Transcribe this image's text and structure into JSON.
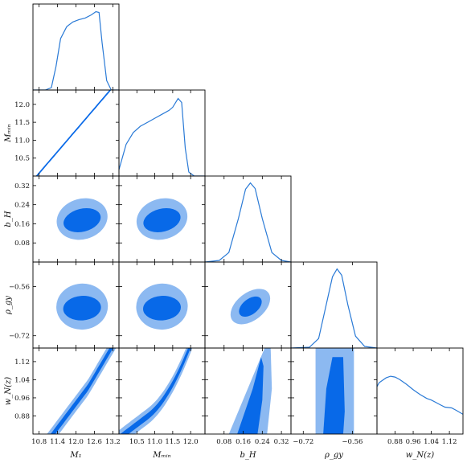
{
  "chart_data": {
    "type": "corner",
    "title": "",
    "parameters": [
      {
        "key": "M1",
        "label": "M₁",
        "range": [
          10.6,
          13.4
        ],
        "ticks": [
          10.8,
          11.4,
          12.0,
          12.6,
          13.2
        ],
        "tick_labels": [
          "10.8",
          "11.4",
          "12.0",
          "12.6",
          "13.2"
        ]
      },
      {
        "key": "Mmin",
        "label": "Mₘᵢₙ",
        "range": [
          10.0,
          12.4
        ],
        "ticks": [
          10.5,
          11.0,
          11.5,
          12.0
        ],
        "tick_labels": [
          "10.5",
          "11.0",
          "11.5",
          "12.0"
        ]
      },
      {
        "key": "bH",
        "label": "b_H",
        "range": [
          0.0,
          0.36
        ],
        "ticks": [
          0.08,
          0.16,
          0.24,
          0.32
        ],
        "tick_labels": [
          "0.08",
          "0.16",
          "0.24",
          "0.32"
        ]
      },
      {
        "key": "rho",
        "label": "ρ_gy",
        "range": [
          -0.76,
          -0.48
        ],
        "ticks": [
          -0.72,
          -0.56
        ],
        "tick_labels": [
          "−0.72",
          "−0.56"
        ]
      },
      {
        "key": "wN",
        "label": "w_N(z)",
        "range": [
          0.8,
          1.18
        ],
        "ticks": [
          0.88,
          0.96,
          1.04,
          1.12
        ],
        "tick_labels": [
          "0.88",
          "0.96",
          "1.04",
          "1.12"
        ]
      }
    ],
    "row_labels": [
      "Mₘᵢₙ",
      "b_H",
      "ρ_gy",
      "w_N(z)"
    ],
    "colors": {
      "line": "#2a7ad6",
      "inner": "#0869e8",
      "outer": "#8cb9f1",
      "frame": "#000000"
    },
    "marginals": {
      "M1": [
        [
          10.6,
          0
        ],
        [
          11.0,
          0
        ],
        [
          11.2,
          0.03
        ],
        [
          11.35,
          0.3
        ],
        [
          11.5,
          0.65
        ],
        [
          11.7,
          0.8
        ],
        [
          11.9,
          0.86
        ],
        [
          12.1,
          0.89
        ],
        [
          12.3,
          0.91
        ],
        [
          12.5,
          0.95
        ],
        [
          12.65,
          0.99
        ],
        [
          12.75,
          0.98
        ],
        [
          12.85,
          0.6
        ],
        [
          13.0,
          0.12
        ],
        [
          13.15,
          0
        ],
        [
          13.4,
          0
        ]
      ],
      "Mmin": [
        [
          10.0,
          0.08
        ],
        [
          10.2,
          0.4
        ],
        [
          10.4,
          0.55
        ],
        [
          10.6,
          0.63
        ],
        [
          10.8,
          0.68
        ],
        [
          11.0,
          0.73
        ],
        [
          11.2,
          0.78
        ],
        [
          11.4,
          0.83
        ],
        [
          11.5,
          0.87
        ],
        [
          11.65,
          0.98
        ],
        [
          11.75,
          0.93
        ],
        [
          11.85,
          0.35
        ],
        [
          11.95,
          0.05
        ],
        [
          12.1,
          0
        ],
        [
          12.4,
          0
        ]
      ],
      "bH": [
        [
          0.0,
          0
        ],
        [
          0.06,
          0.02
        ],
        [
          0.1,
          0.12
        ],
        [
          0.14,
          0.55
        ],
        [
          0.17,
          0.92
        ],
        [
          0.19,
          1.0
        ],
        [
          0.21,
          0.93
        ],
        [
          0.24,
          0.55
        ],
        [
          0.28,
          0.12
        ],
        [
          0.32,
          0.02
        ],
        [
          0.36,
          0
        ]
      ],
      "rho": [
        [
          -0.76,
          0
        ],
        [
          -0.7,
          0.01
        ],
        [
          -0.67,
          0.12
        ],
        [
          -0.645,
          0.55
        ],
        [
          -0.625,
          0.9
        ],
        [
          -0.61,
          1.0
        ],
        [
          -0.595,
          0.92
        ],
        [
          -0.575,
          0.55
        ],
        [
          -0.55,
          0.15
        ],
        [
          -0.52,
          0.02
        ],
        [
          -0.48,
          0
        ]
      ],
      "wN": [
        [
          0.8,
          0.6
        ],
        [
          0.81,
          0.65
        ],
        [
          0.84,
          0.71
        ],
        [
          0.86,
          0.73
        ],
        [
          0.88,
          0.72
        ],
        [
          0.9,
          0.69
        ],
        [
          0.93,
          0.63
        ],
        [
          0.96,
          0.56
        ],
        [
          0.99,
          0.5
        ],
        [
          1.02,
          0.45
        ],
        [
          1.04,
          0.43
        ],
        [
          1.06,
          0.4
        ],
        [
          1.08,
          0.37
        ],
        [
          1.1,
          0.34
        ],
        [
          1.13,
          0.33
        ],
        [
          1.15,
          0.3
        ],
        [
          1.18,
          0.25
        ]
      ]
    }
  }
}
